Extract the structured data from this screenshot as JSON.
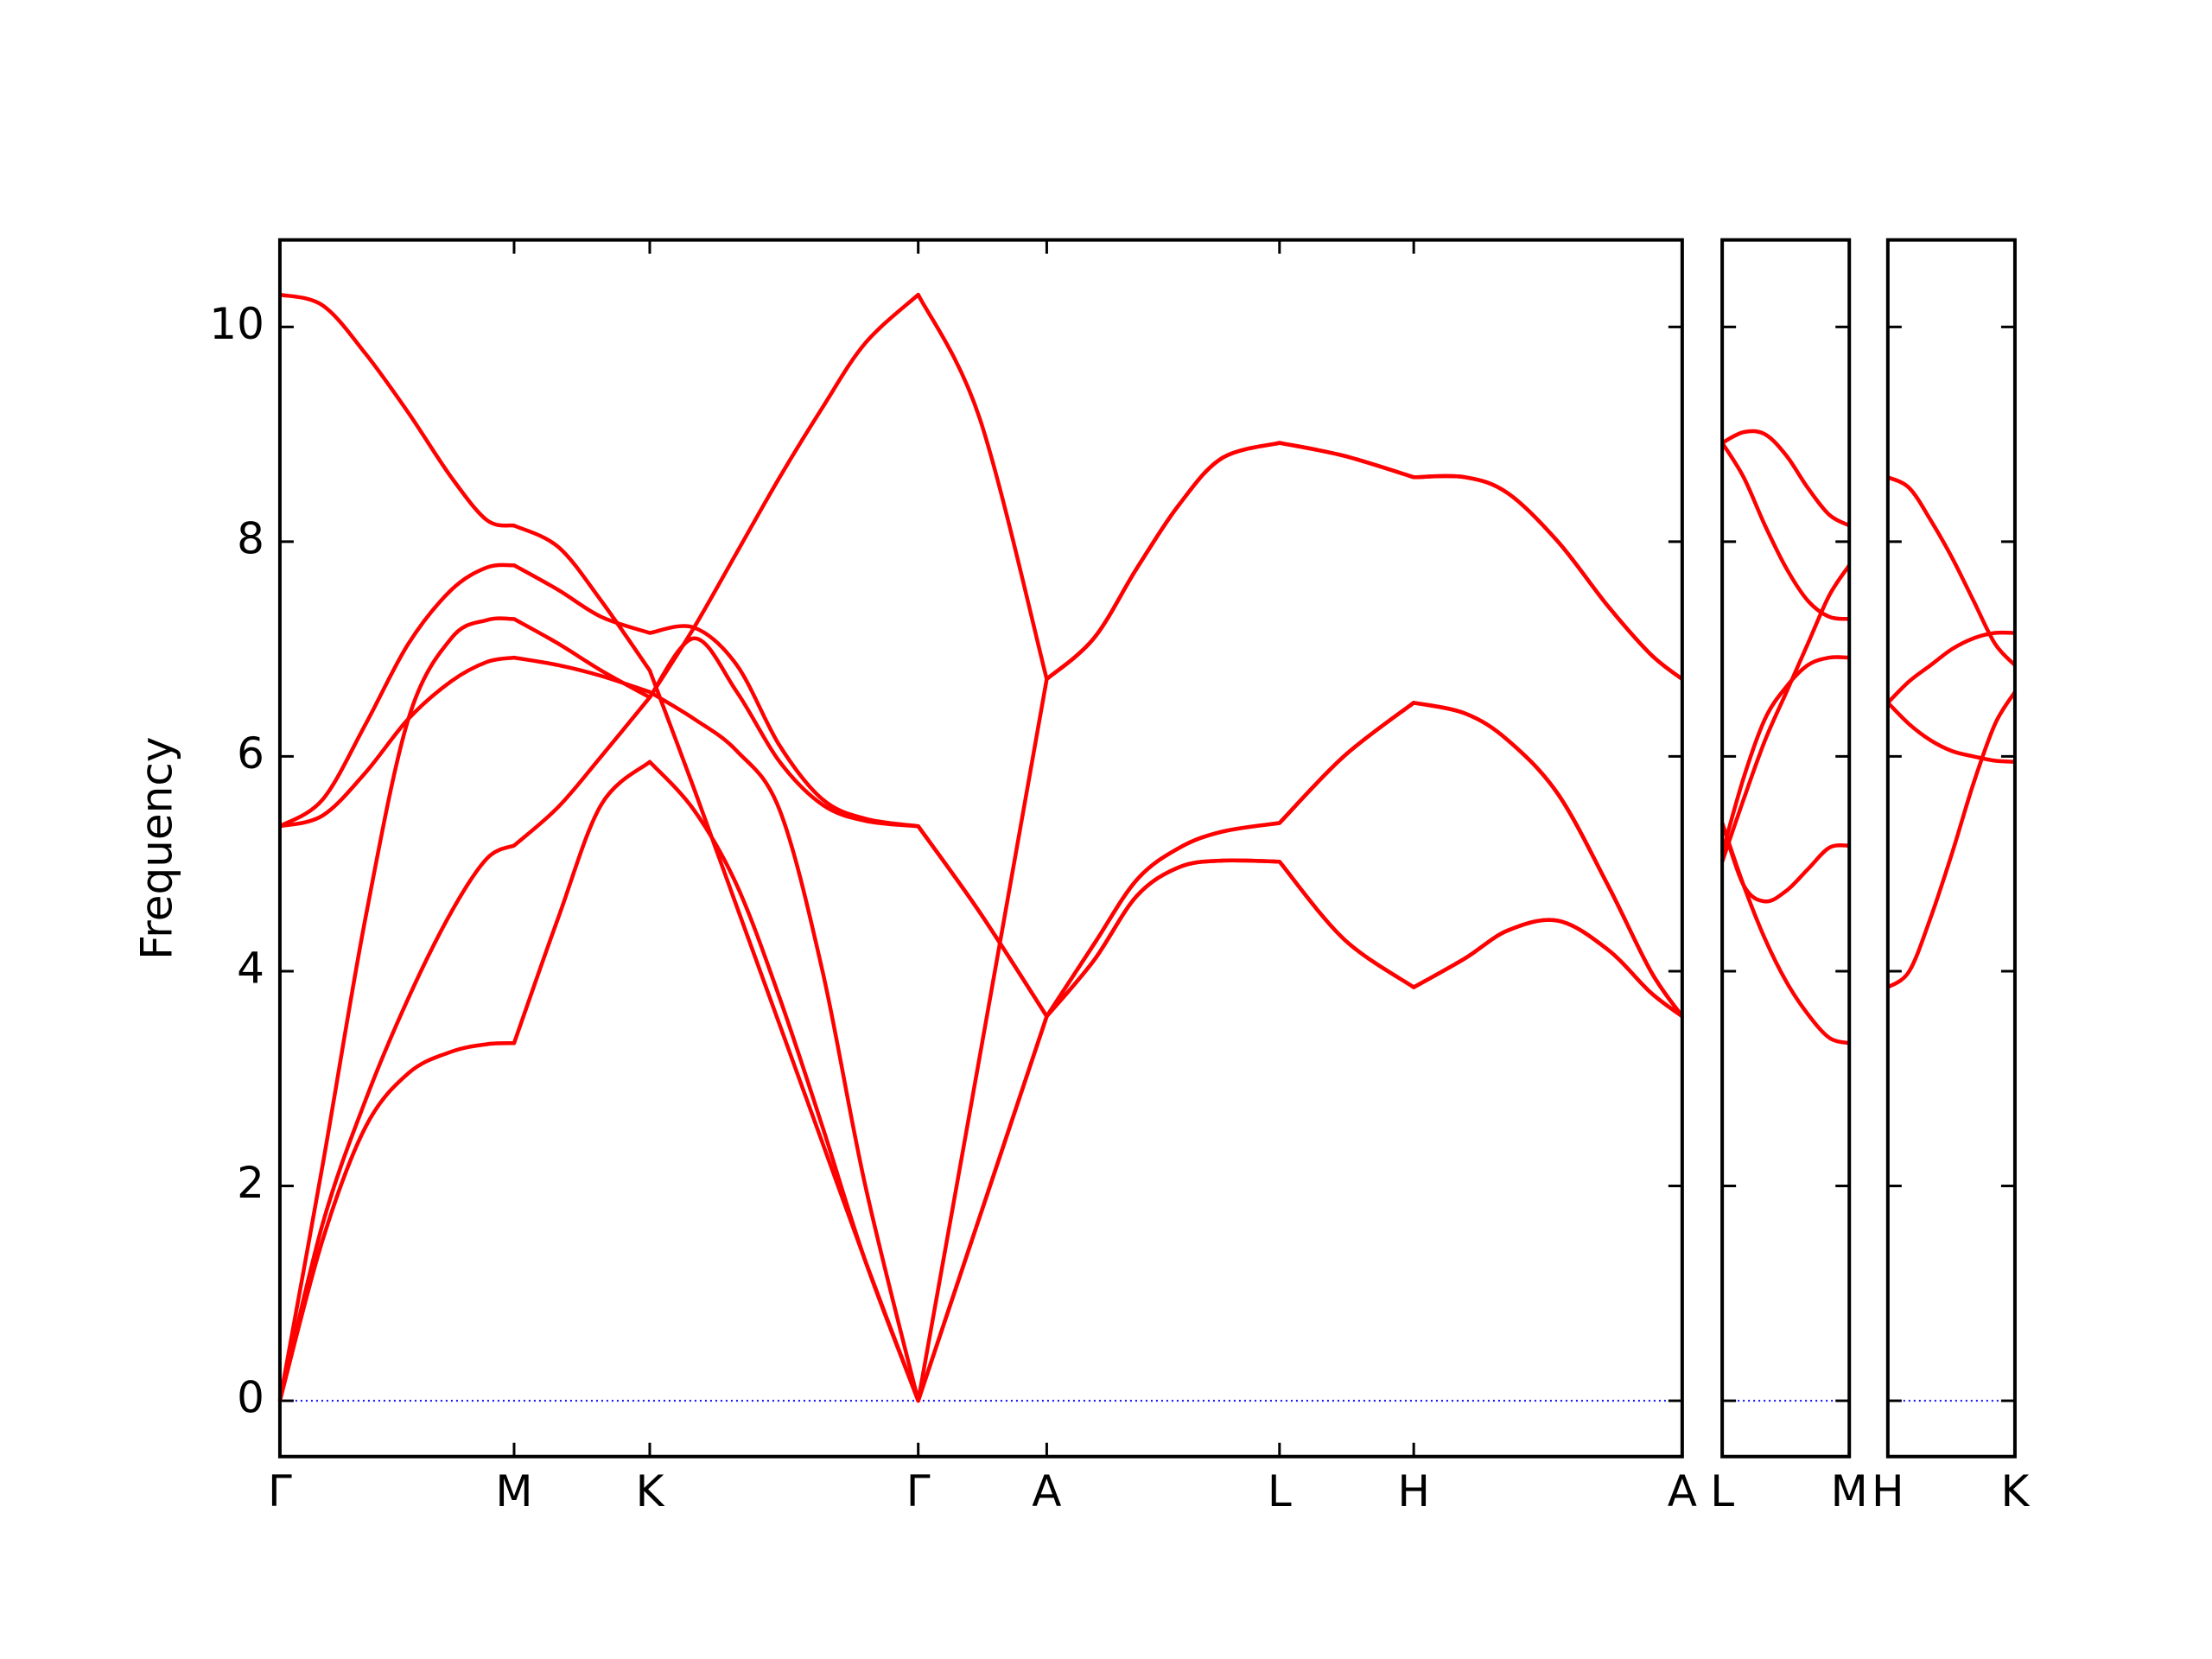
{
  "chart_data": [
    {
      "type": "line",
      "ylabel": "Frequency",
      "color": "#ff0000",
      "show_ytick_labels": true,
      "hline": {
        "value": 0,
        "color": "#0000ff",
        "style": "dotted"
      },
      "xlim": [
        0,
        9.82
      ],
      "ylim": [
        -0.52,
        10.81
      ],
      "xticks": [
        {
          "value": 0,
          "label": "Γ"
        },
        {
          "value": 1.64,
          "label": "M"
        },
        {
          "value": 2.59,
          "label": "K"
        },
        {
          "value": 4.47,
          "label": "Γ"
        },
        {
          "value": 5.37,
          "label": "A"
        },
        {
          "value": 7.0,
          "label": "L"
        },
        {
          "value": 7.94,
          "label": "H"
        },
        {
          "value": 9.82,
          "label": "A"
        }
      ],
      "yticks": [
        0,
        2,
        4,
        6,
        8,
        10
      ],
      "x": [
        0,
        0.3,
        0.6,
        0.9,
        1.2,
        1.45,
        1.64,
        1.95,
        2.25,
        2.59,
        2.9,
        3.2,
        3.5,
        3.8,
        4.1,
        4.47,
        4.9,
        5.37,
        5.7,
        6.0,
        6.3,
        6.6,
        7.0,
        7.45,
        7.94,
        8.3,
        8.6,
        8.95,
        9.3,
        9.6,
        9.82
      ],
      "series": [
        {
          "values": [
            0,
            1.5,
            2.55,
            3.05,
            3.25,
            3.32,
            3.33,
            4.5,
            5.55,
            5.95,
            5.5,
            4.8,
            3.75,
            2.55,
            1.3,
            0,
            1.71,
            3.58,
            4.1,
            4.7,
            4.97,
            5.03,
            5.02,
            4.3,
            3.85,
            4.12,
            4.38,
            4.47,
            4.2,
            3.8,
            3.58
          ]
        },
        {
          "values": [
            0,
            1.65,
            2.8,
            3.75,
            4.55,
            5.05,
            5.17,
            5.53,
            6.0,
            6.55,
            7.2,
            7.9,
            8.6,
            9.25,
            9.85,
            10.3,
            9.15,
            6.72,
            7.1,
            7.75,
            8.35,
            8.78,
            8.92,
            8.8,
            8.6,
            8.6,
            8.45,
            8.0,
            7.4,
            6.95,
            6.72
          ]
        },
        {
          "values": [
            0,
            2.2,
            4.5,
            6.35,
            7.1,
            7.27,
            7.28,
            7.05,
            6.8,
            6.55,
            7.1,
            6.6,
            5.95,
            5.55,
            5.4,
            5.35,
            4.55,
            3.58,
            4.25,
            4.85,
            5.15,
            5.3,
            5.38,
            6.0,
            6.5,
            6.4,
            6.15,
            5.65,
            4.8,
            4.0,
            3.58
          ]
        },
        {
          "values": [
            5.35,
            5.45,
            5.85,
            6.35,
            6.7,
            6.88,
            6.92,
            6.85,
            6.75,
            6.6,
            6.35,
            6.05,
            5.5,
            4.0,
            2.0,
            0,
            3.2,
            6.72,
            7.1,
            7.75,
            8.35,
            8.78,
            8.92,
            8.8,
            8.6,
            8.6,
            8.45,
            8.0,
            7.4,
            6.95,
            6.72
          ]
        },
        {
          "values": [
            5.35,
            5.6,
            6.3,
            7.05,
            7.55,
            7.76,
            7.78,
            7.55,
            7.3,
            7.15,
            7.2,
            6.85,
            6.1,
            5.6,
            5.42,
            5.35,
            4.55,
            3.58,
            4.25,
            4.85,
            5.15,
            5.3,
            5.38,
            6.0,
            6.5,
            6.4,
            6.15,
            5.65,
            4.8,
            4.0,
            3.58
          ]
        },
        {
          "values": [
            10.3,
            10.2,
            9.75,
            9.2,
            8.6,
            8.2,
            8.15,
            7.95,
            7.45,
            6.8,
            5.7,
            4.6,
            3.5,
            2.4,
            1.3,
            0,
            1.71,
            3.58,
            4.1,
            4.7,
            4.97,
            5.03,
            5.02,
            4.3,
            3.85,
            4.12,
            4.38,
            4.47,
            4.2,
            3.8,
            3.58
          ]
        }
      ]
    },
    {
      "type": "line",
      "color": "#ff0000",
      "show_ytick_labels": false,
      "hline": {
        "value": 0,
        "color": "#0000ff",
        "style": "dotted"
      },
      "xlim": [
        0,
        0.89
      ],
      "ylim": [
        -0.52,
        10.81
      ],
      "xticks": [
        {
          "value": 0,
          "label": "L"
        },
        {
          "value": 0.89,
          "label": "M"
        }
      ],
      "yticks": [
        0,
        2,
        4,
        6,
        8,
        10
      ],
      "x": [
        0,
        0.15,
        0.3,
        0.45,
        0.6,
        0.75,
        0.89
      ],
      "series": [
        {
          "values": [
            8.92,
            9.02,
            9.0,
            8.8,
            8.5,
            8.25,
            8.15
          ]
        },
        {
          "values": [
            8.92,
            8.6,
            8.15,
            7.75,
            7.45,
            7.3,
            7.28
          ]
        },
        {
          "values": [
            5.02,
            5.6,
            6.15,
            6.6,
            7.05,
            7.5,
            7.78
          ]
        },
        {
          "values": [
            5.1,
            5.8,
            6.35,
            6.65,
            6.85,
            6.92,
            6.92
          ]
        },
        {
          "values": [
            5.38,
            4.8,
            4.65,
            4.75,
            4.95,
            5.15,
            5.17
          ]
        },
        {
          "values": [
            5.38,
            4.8,
            4.3,
            3.9,
            3.6,
            3.38,
            3.33
          ]
        }
      ]
    },
    {
      "type": "line",
      "color": "#ff0000",
      "show_ytick_labels": false,
      "hline": {
        "value": 0,
        "color": "#0000ff",
        "style": "dotted"
      },
      "xlim": [
        0,
        0.89
      ],
      "ylim": [
        -0.52,
        10.81
      ],
      "xticks": [
        {
          "value": 0,
          "label": "H"
        },
        {
          "value": 0.89,
          "label": "K"
        }
      ],
      "yticks": [
        0,
        2,
        4,
        6,
        8,
        10
      ],
      "x": [
        0,
        0.15,
        0.3,
        0.45,
        0.6,
        0.75,
        0.89
      ],
      "series": [
        {
          "values": [
            8.6,
            8.5,
            8.2,
            7.85,
            7.45,
            7.05,
            6.85
          ]
        },
        {
          "values": [
            6.5,
            6.7,
            6.85,
            7.0,
            7.1,
            7.15,
            7.15
          ]
        },
        {
          "values": [
            6.5,
            6.3,
            6.15,
            6.05,
            6.0,
            5.96,
            5.95
          ]
        },
        {
          "values": [
            3.85,
            4.0,
            4.5,
            5.1,
            5.75,
            6.3,
            6.6
          ]
        }
      ]
    }
  ]
}
